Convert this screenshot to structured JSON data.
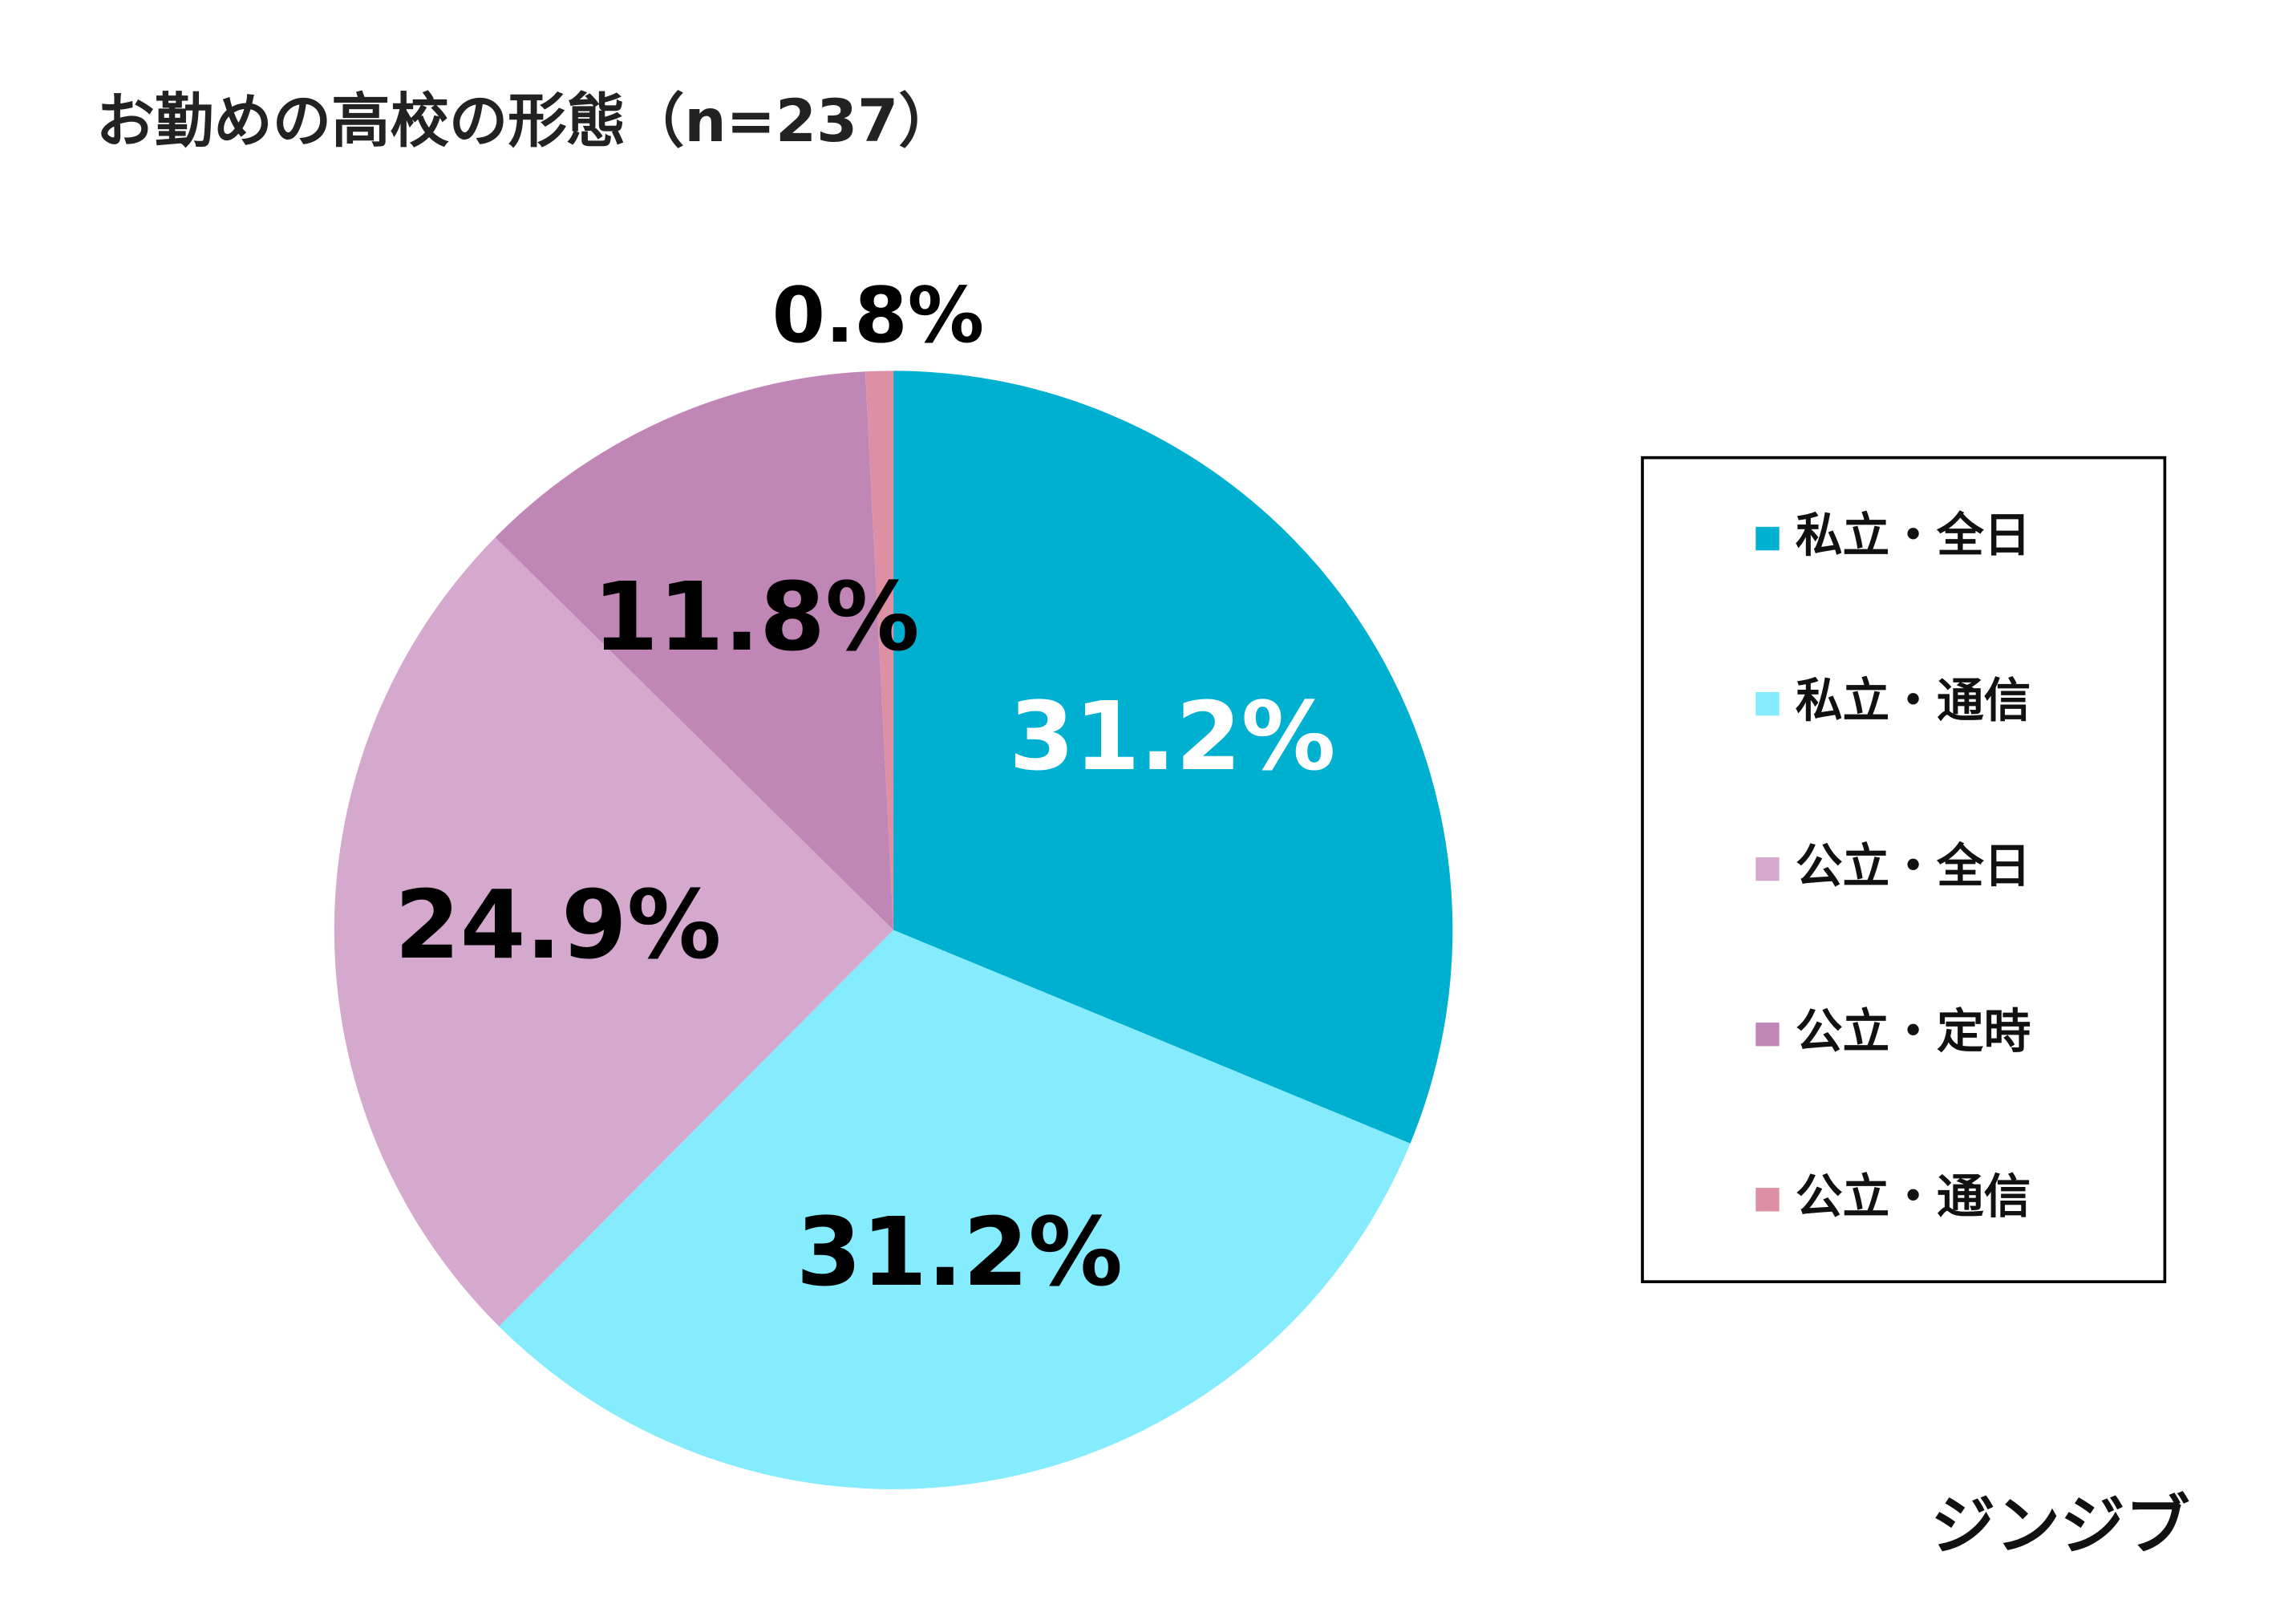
{
  "chart_data": {
    "type": "pie",
    "title": "お勤めの高校の形態（n=237）",
    "categories": [
      "私立・全日",
      "私立・通信",
      "公立・全日",
      "公立・定時",
      "公立・通信"
    ],
    "values": [
      31.2,
      31.2,
      24.9,
      11.8,
      0.8
    ],
    "value_labels": [
      "31.2%",
      "31.2%",
      "24.9%",
      "11.8%",
      "0.8%"
    ],
    "colors": [
      "#00b0d0",
      "#84ecfd",
      "#d4a9cd",
      "#c086b6",
      "#dd8fa6"
    ],
    "value_label_colors": [
      "#ffffff",
      "#000000",
      "#000000",
      "#000000",
      "#000000"
    ],
    "legend": "right"
  },
  "brand": "ジンジブ"
}
